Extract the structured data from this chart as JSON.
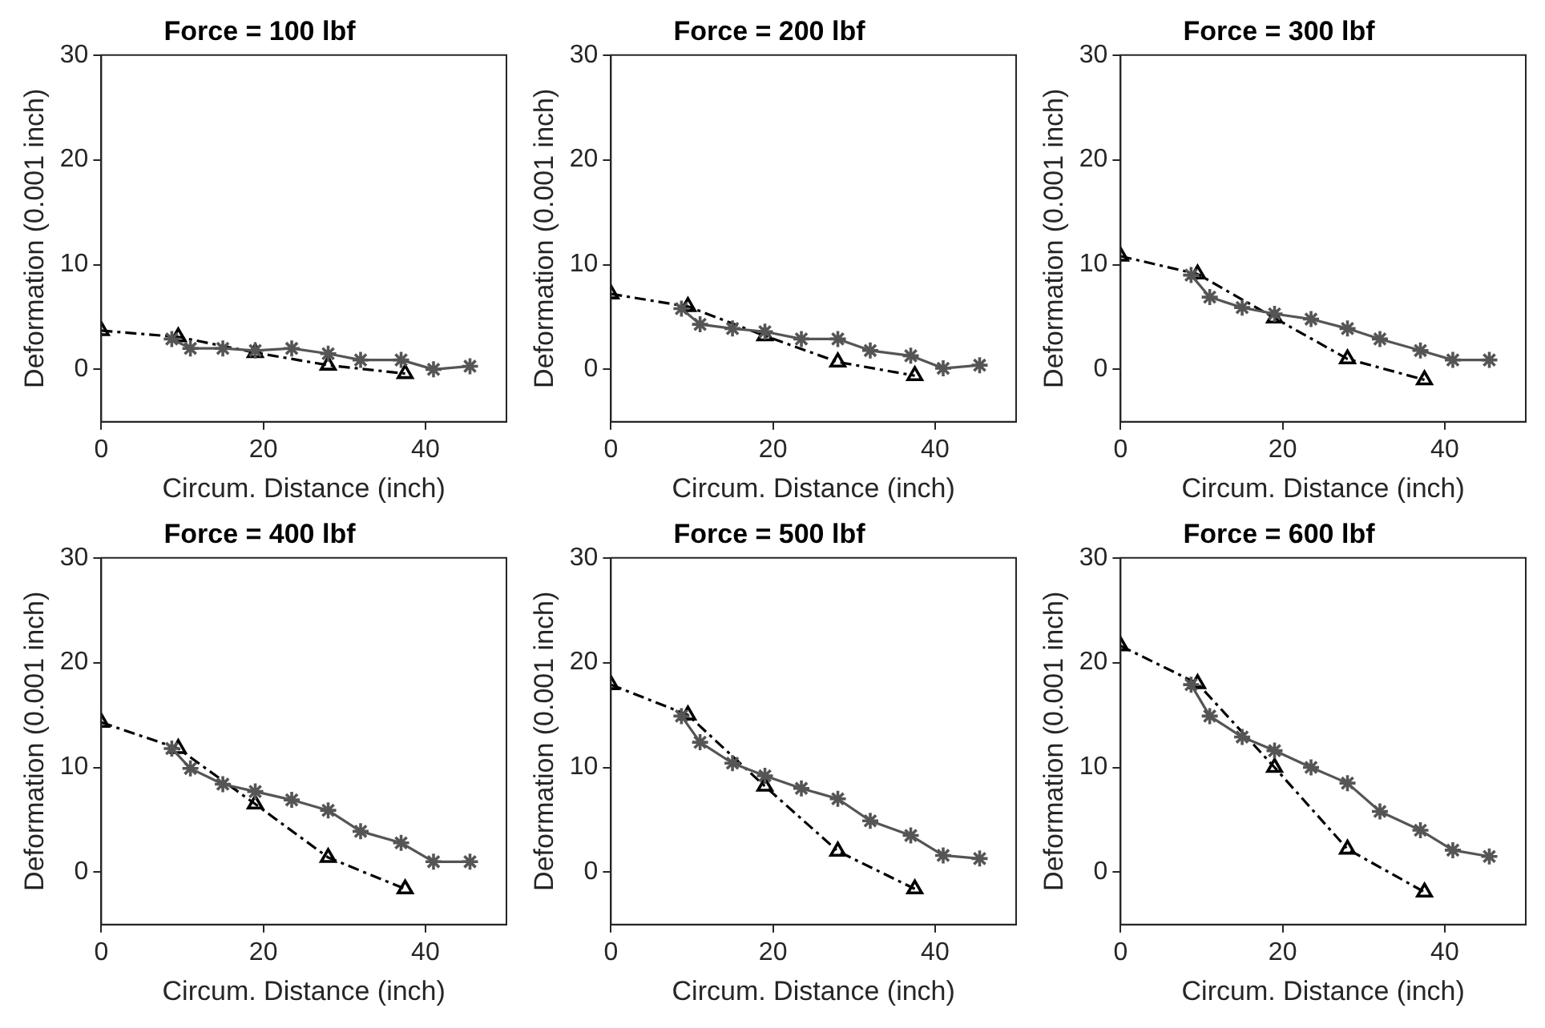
{
  "chart_data": [
    {
      "type": "line",
      "title": "Force = 100 lbf",
      "xlabel": "Circum. Distance (inch)",
      "ylabel": "Deformation (0.001 inch)",
      "xlim": [
        0,
        50
      ],
      "xticks": [
        0,
        20,
        40
      ],
      "ylim": [
        -5,
        30
      ],
      "yticks": [
        0,
        10,
        20,
        30
      ],
      "grid": false,
      "legend": false,
      "series": [
        {
          "color": "#555555",
          "marker": "cross",
          "line_style": "solid",
          "x": [
            8.7,
            11,
            15,
            19,
            23.5,
            28,
            32,
            37,
            41,
            45.5
          ],
          "values": [
            2.9,
            2.0,
            2.0,
            1.8,
            2.0,
            1.5,
            0.9,
            0.9,
            0,
            0.3
          ]
        },
        {
          "color": "#000000",
          "marker": "triangle",
          "line_style": "dashed",
          "x": [
            0,
            9.5,
            19,
            28,
            37.5
          ],
          "values": [
            3.7,
            3.1,
            1.6,
            0.4,
            -0.4
          ]
        }
      ]
    },
    {
      "type": "line",
      "title": "Force = 200 lbf",
      "xlabel": "Circum. Distance (inch)",
      "ylabel": "Deformation (0.001 inch)",
      "xlim": [
        0,
        50
      ],
      "xticks": [
        0,
        20,
        40
      ],
      "ylim": [
        -5,
        30
      ],
      "yticks": [
        0,
        10,
        20,
        30
      ],
      "grid": false,
      "legend": false,
      "series": [
        {
          "color": "#555555",
          "marker": "cross",
          "line_style": "solid",
          "x": [
            8.7,
            11,
            15,
            19,
            23.5,
            28,
            32,
            37,
            41,
            45.5
          ],
          "values": [
            5.8,
            4.3,
            3.9,
            3.6,
            2.9,
            2.9,
            1.8,
            1.3,
            0.1,
            0.4
          ]
        },
        {
          "color": "#000000",
          "marker": "triangle",
          "line_style": "dashed",
          "x": [
            0,
            9.5,
            19,
            28,
            37.5
          ],
          "values": [
            7.2,
            6.0,
            3.2,
            0.7,
            -0.6
          ]
        }
      ]
    },
    {
      "type": "line",
      "title": "Force = 300 lbf",
      "xlabel": "Circum. Distance (inch)",
      "ylabel": "Deformation (0.001 inch)",
      "xlim": [
        0,
        50
      ],
      "xticks": [
        0,
        20,
        40
      ],
      "ylim": [
        -5,
        30
      ],
      "yticks": [
        0,
        10,
        20,
        30
      ],
      "grid": false,
      "legend": false,
      "series": [
        {
          "color": "#555555",
          "marker": "cross",
          "line_style": "solid",
          "x": [
            8.7,
            11,
            15,
            19,
            23.5,
            28,
            32,
            37,
            41,
            45.5
          ],
          "values": [
            9.0,
            6.9,
            5.9,
            5.3,
            4.8,
            3.9,
            2.9,
            1.8,
            0.9,
            0.9
          ]
        },
        {
          "color": "#000000",
          "marker": "triangle",
          "line_style": "dashed",
          "x": [
            0,
            9.5,
            19,
            28,
            37.5
          ],
          "values": [
            10.8,
            9.1,
            4.9,
            1.0,
            -1.0
          ]
        }
      ]
    },
    {
      "type": "line",
      "title": "Force = 400 lbf",
      "xlabel": "Circum. Distance (inch)",
      "ylabel": "Deformation (0.001 inch)",
      "xlim": [
        0,
        50
      ],
      "xticks": [
        0,
        20,
        40
      ],
      "ylim": [
        -5,
        30
      ],
      "yticks": [
        0,
        10,
        20,
        30
      ],
      "grid": false,
      "legend": false,
      "series": [
        {
          "color": "#555555",
          "marker": "cross",
          "line_style": "solid",
          "x": [
            8.7,
            11,
            15,
            19,
            23.5,
            28,
            32,
            37,
            41,
            45.5
          ],
          "values": [
            11.8,
            9.9,
            8.4,
            7.7,
            6.9,
            5.9,
            3.9,
            2.8,
            1.0,
            1.0
          ]
        },
        {
          "color": "#000000",
          "marker": "triangle",
          "line_style": "dashed",
          "x": [
            0,
            9.5,
            19,
            28,
            37.5
          ],
          "values": [
            14.3,
            11.8,
            6.5,
            1.4,
            -1.6
          ]
        }
      ]
    },
    {
      "type": "line",
      "title": "Force = 500 lbf",
      "xlabel": "Circum. Distance (inch)",
      "ylabel": "Deformation (0.001 inch)",
      "xlim": [
        0,
        50
      ],
      "xticks": [
        0,
        20,
        40
      ],
      "ylim": [
        -5,
        30
      ],
      "yticks": [
        0,
        10,
        20,
        30
      ],
      "grid": false,
      "legend": false,
      "series": [
        {
          "color": "#555555",
          "marker": "cross",
          "line_style": "solid",
          "x": [
            8.7,
            11,
            15,
            19,
            23.5,
            28,
            32,
            37,
            41,
            45.5
          ],
          "values": [
            14.9,
            12.4,
            10.4,
            9.2,
            8.0,
            7.0,
            4.9,
            3.5,
            1.6,
            1.3
          ]
        },
        {
          "color": "#000000",
          "marker": "triangle",
          "line_style": "dashed",
          "x": [
            0,
            9.5,
            19,
            28,
            37.5
          ],
          "values": [
            17.9,
            15.0,
            8.2,
            2.0,
            -1.6
          ]
        }
      ]
    },
    {
      "type": "line",
      "title": "Force = 600 lbf",
      "xlabel": "Circum. Distance (inch)",
      "ylabel": "Deformation (0.001 inch)",
      "xlim": [
        0,
        50
      ],
      "xticks": [
        0,
        20,
        40
      ],
      "ylim": [
        -5,
        30
      ],
      "yticks": [
        0,
        10,
        20,
        30
      ],
      "grid": false,
      "legend": false,
      "series": [
        {
          "color": "#555555",
          "marker": "cross",
          "line_style": "solid",
          "x": [
            8.7,
            11,
            15,
            19,
            23.5,
            28,
            32,
            37,
            41,
            45.5
          ],
          "values": [
            17.9,
            14.9,
            12.9,
            11.6,
            10.0,
            8.5,
            5.8,
            4.0,
            2.1,
            1.5
          ]
        },
        {
          "color": "#000000",
          "marker": "triangle",
          "line_style": "dashed",
          "x": [
            0,
            9.5,
            19,
            28,
            37.5
          ],
          "values": [
            21.6,
            18.0,
            10.0,
            2.2,
            -1.9
          ]
        }
      ]
    }
  ]
}
